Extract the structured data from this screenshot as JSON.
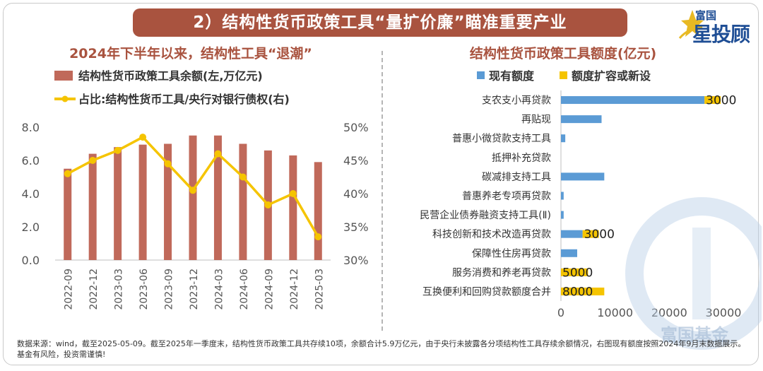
{
  "header": {
    "title": "2）结构性货币政策工具“量扩价廉”瞄准重要产业"
  },
  "logo": {
    "top": "富国",
    "bottom": "星投顾"
  },
  "watermark": {
    "text": "富国基金"
  },
  "colors": {
    "title_bg": "#a9533f",
    "subtitle": "#a9533f",
    "bar_brown": "#c0695a",
    "line_gold": "#f5c400",
    "bar_blue": "#5b9bd5",
    "bar_gold": "#f5c400",
    "axis_text": "#555555"
  },
  "chart_data": [
    {
      "type": "bar",
      "title": "2024年下半年以来，结构性工具“退潮”",
      "categories": [
        "2022-09",
        "2022-12",
        "2023-03",
        "2023-06",
        "2023-09",
        "2023-12",
        "2024-03",
        "2024-06",
        "2024-09",
        "2024-12",
        "2025-03"
      ],
      "series": [
        {
          "name": "结构性货币政策工具余额(左,万亿元)",
          "type": "bar",
          "axis": "left",
          "values": [
            5.5,
            6.4,
            6.8,
            6.95,
            7.0,
            7.5,
            7.5,
            7.0,
            6.6,
            6.3,
            5.9
          ]
        },
        {
          "name": "占比:结构性货币工具/央行对银行债权(右)",
          "type": "line",
          "axis": "right",
          "values": [
            43.0,
            45.0,
            46.5,
            48.5,
            44.5,
            40.5,
            46.0,
            42.5,
            38.3,
            40.0,
            33.5
          ]
        }
      ],
      "ylim": [
        0,
        8
      ],
      "yticks": [
        "0.0",
        "2.0",
        "4.0",
        "6.0",
        "8.0"
      ],
      "y2lim": [
        30,
        50
      ],
      "y2ticks": [
        "30%",
        "35%",
        "40%",
        "45%",
        "50%"
      ]
    },
    {
      "type": "bar",
      "orientation": "horizontal",
      "title": "结构性货币政策工具额度(亿元)",
      "categories": [
        "支农支小再贷款",
        "再贴现",
        "普惠小微贷款支持工具",
        "抵押补充贷款",
        "碳减排支持工具",
        "普惠养老专项再贷款",
        "民营企业债券融资支持工具(Ⅱ)",
        "科技创新和技术改造再贷款",
        "保障性住房再贷款",
        "服务消费和养老再贷款",
        "互换便利和回购贷款额度合并"
      ],
      "series": [
        {
          "name": "现有额度",
          "values": [
            26500,
            7500,
            800,
            0,
            8000,
            500,
            500,
            4000,
            3000,
            0,
            0
          ]
        },
        {
          "name": "额度扩容或新设",
          "values": [
            3000,
            0,
            0,
            0,
            0,
            0,
            0,
            3000,
            0,
            5000,
            8000
          ]
        }
      ],
      "data_labels": [
        "3000",
        "",
        "",
        "",
        "",
        "",
        "",
        "3000",
        "",
        "5000",
        "8000"
      ],
      "xlim": [
        0,
        30000
      ],
      "xticks": [
        "0",
        "10000",
        "20000",
        "30000"
      ]
    }
  ],
  "footnote": "数据来源：wind，截至2025-05-09。截至2025年一季度末，结构性货币政策工具共存续10项，余额合计5.9万亿元，由于央行未披露各分项结构性工具存续余额情况，右图现有额度按照2024年9月末数据展示。基金有风险，投资需谨慎!"
}
